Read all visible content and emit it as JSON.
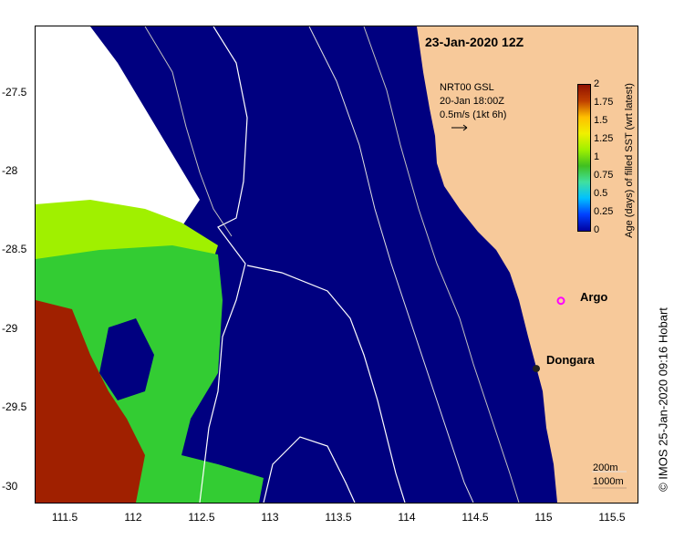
{
  "title": "23-Jan-2020 12Z",
  "current_vector": {
    "line1": "NRT00 GSL",
    "line2": "20-Jan 18:00Z",
    "line3": "0.5m/s (1kt 6h)"
  },
  "colorbar": {
    "label": "Age (days) of filled SST (wrt latest)",
    "ticks": [
      "2",
      "1.75",
      "1.5",
      "1.25",
      "1",
      "0.75",
      "0.5",
      "0.25",
      "0"
    ],
    "colors": [
      "#0000a0",
      "#0040ff",
      "#00c0ff",
      "#40e0a0",
      "#40c020",
      "#a0f000",
      "#f0f000",
      "#ffc000",
      "#c04000",
      "#901000"
    ]
  },
  "credit": "© IMOS 25-Jan-2020 09:16 Hobart",
  "places": {
    "argo": "Argo",
    "dongara": "Dongara"
  },
  "depth_legend": {
    "shallow": "200m",
    "deep": "1000m"
  },
  "axes": {
    "x_ticks": [
      "111.5",
      "112",
      "112.5",
      "113",
      "113.5",
      "114",
      "114.5",
      "115",
      "115.5"
    ],
    "y_ticks": [
      "-27.5",
      "-28",
      "-28.5",
      "-29",
      "-29.5",
      "-30"
    ],
    "lon_range": [
      111.28,
      115.68
    ],
    "lat_range": [
      -27.08,
      -30.1
    ]
  },
  "colors": {
    "land": "#f7c99a",
    "ocean": "#000080",
    "green": "#33cc33",
    "lime": "#a0f000",
    "brown": "#a02000",
    "argo": "#ff00ff"
  },
  "markers": {
    "argo": {
      "lon": 115.12,
      "lat": -28.82
    },
    "dongara": {
      "lon": 114.94,
      "lat": -29.25
    }
  }
}
